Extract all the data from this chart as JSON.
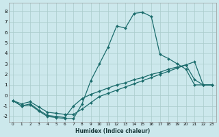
{
  "xlabel": "Humidex (Indice chaleur)",
  "xlim": [
    -0.5,
    23.5
  ],
  "ylim": [
    -2.5,
    8.8
  ],
  "background_color": "#cce8ec",
  "grid_color": "#aacccc",
  "line_color": "#1a6b6b",
  "line1_x": [
    0,
    1,
    2,
    3,
    4,
    5,
    6,
    7,
    8,
    9,
    10,
    11,
    12,
    13,
    14,
    15,
    16,
    17,
    18,
    19,
    20,
    21,
    22,
    23
  ],
  "line1_y": [
    -0.5,
    -1.0,
    -0.9,
    -1.5,
    -2.0,
    -2.1,
    -2.2,
    -2.2,
    -0.8,
    1.4,
    3.0,
    4.6,
    6.6,
    6.4,
    7.8,
    7.9,
    7.5,
    3.9,
    3.5,
    3.0,
    2.5,
    1.0,
    1.0,
    1.0
  ],
  "line2_x": [
    0,
    1,
    2,
    3,
    4,
    5,
    6,
    7,
    8,
    9,
    10,
    11,
    12,
    13,
    14,
    15,
    16,
    17,
    18,
    19,
    20,
    21,
    22,
    23
  ],
  "line2_y": [
    -0.5,
    -1.0,
    -0.8,
    -1.4,
    -1.9,
    -2.0,
    -2.1,
    -1.0,
    -0.3,
    0.1,
    0.4,
    0.7,
    1.0,
    1.2,
    1.5,
    1.7,
    2.0,
    2.2,
    2.5,
    2.7,
    2.9,
    1.5,
    1.0,
    1.0
  ],
  "line3_x": [
    0,
    1,
    2,
    3,
    4,
    5,
    6,
    7,
    8,
    9,
    10,
    11,
    12,
    13,
    14,
    15,
    16,
    17,
    18,
    19,
    20,
    21,
    22,
    23
  ],
  "line3_y": [
    -0.5,
    -0.8,
    -0.6,
    -1.1,
    -1.6,
    -1.7,
    -1.8,
    -1.8,
    -1.3,
    -0.7,
    -0.1,
    0.2,
    0.5,
    0.8,
    1.1,
    1.4,
    1.7,
    2.0,
    2.3,
    2.6,
    2.9,
    3.2,
    1.0,
    1.0
  ]
}
